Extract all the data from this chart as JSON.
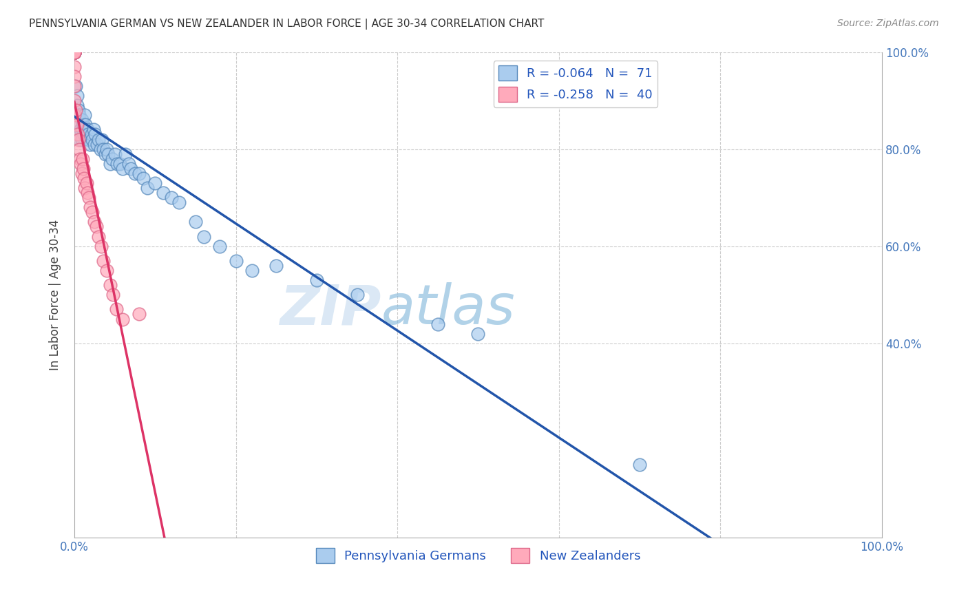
{
  "title": "PENNSYLVANIA GERMAN VS NEW ZEALANDER IN LABOR FORCE | AGE 30-34 CORRELATION CHART",
  "source": "Source: ZipAtlas.com",
  "ylabel": "In Labor Force | Age 30-34",
  "xlim": [
    0,
    1
  ],
  "ylim": [
    0,
    1
  ],
  "legend_r1": "R = -0.064",
  "legend_n1": "N =  71",
  "legend_r2": "R = -0.258",
  "legend_n2": "N =  40",
  "blue_scatter_face": "#aaccee",
  "blue_scatter_edge": "#5588bb",
  "pink_scatter_face": "#ffaabb",
  "pink_scatter_edge": "#dd6688",
  "blue_line_color": "#2255aa",
  "pink_line_color": "#dd3366",
  "watermark_zip": "ZIP",
  "watermark_atlas": "atlas",
  "pa_german_x": [
    0.0,
    0.0,
    0.0,
    0.0,
    0.0,
    0.0,
    0.0,
    0.0,
    0.002,
    0.003,
    0.003,
    0.004,
    0.005,
    0.006,
    0.006,
    0.007,
    0.007,
    0.008,
    0.009,
    0.009,
    0.01,
    0.011,
    0.012,
    0.013,
    0.014,
    0.015,
    0.016,
    0.017,
    0.018,
    0.02,
    0.021,
    0.022,
    0.024,
    0.025,
    0.026,
    0.028,
    0.03,
    0.032,
    0.034,
    0.036,
    0.038,
    0.04,
    0.042,
    0.044,
    0.047,
    0.05,
    0.053,
    0.056,
    0.06,
    0.063,
    0.067,
    0.07,
    0.075,
    0.08,
    0.085,
    0.09,
    0.1,
    0.11,
    0.12,
    0.13,
    0.15,
    0.16,
    0.18,
    0.2,
    0.22,
    0.25,
    0.3,
    0.35,
    0.45,
    0.5,
    0.7
  ],
  "pa_german_y": [
    1.0,
    1.0,
    1.0,
    1.0,
    1.0,
    1.0,
    1.0,
    1.0,
    0.93,
    0.91,
    0.89,
    0.87,
    0.88,
    0.87,
    0.85,
    0.83,
    0.82,
    0.84,
    0.86,
    0.82,
    0.84,
    0.85,
    0.83,
    0.87,
    0.85,
    0.83,
    0.84,
    0.83,
    0.82,
    0.81,
    0.83,
    0.82,
    0.84,
    0.81,
    0.83,
    0.81,
    0.82,
    0.8,
    0.82,
    0.8,
    0.79,
    0.8,
    0.79,
    0.77,
    0.78,
    0.79,
    0.77,
    0.77,
    0.76,
    0.79,
    0.77,
    0.76,
    0.75,
    0.75,
    0.74,
    0.72,
    0.73,
    0.71,
    0.7,
    0.69,
    0.65,
    0.62,
    0.6,
    0.57,
    0.55,
    0.56,
    0.53,
    0.5,
    0.44,
    0.42,
    0.15
  ],
  "nz_x": [
    0.0,
    0.0,
    0.0,
    0.0,
    0.0,
    0.0,
    0.0,
    0.0,
    0.0,
    0.0,
    0.0,
    0.0,
    0.002,
    0.003,
    0.004,
    0.005,
    0.006,
    0.007,
    0.008,
    0.009,
    0.01,
    0.011,
    0.012,
    0.013,
    0.015,
    0.016,
    0.018,
    0.02,
    0.022,
    0.025,
    0.027,
    0.03,
    0.033,
    0.036,
    0.04,
    0.044,
    0.048,
    0.052,
    0.06,
    0.08
  ],
  "nz_y": [
    1.0,
    1.0,
    1.0,
    1.0,
    1.0,
    1.0,
    1.0,
    0.97,
    0.95,
    0.93,
    0.9,
    0.87,
    0.88,
    0.85,
    0.83,
    0.82,
    0.8,
    0.78,
    0.77,
    0.75,
    0.78,
    0.76,
    0.74,
    0.72,
    0.73,
    0.71,
    0.7,
    0.68,
    0.67,
    0.65,
    0.64,
    0.62,
    0.6,
    0.57,
    0.55,
    0.52,
    0.5,
    0.47,
    0.45,
    0.46
  ]
}
